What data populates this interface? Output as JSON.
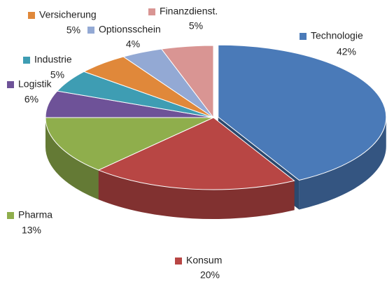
{
  "chart_data": {
    "type": "pie",
    "categories": [
      "Technologie",
      "Konsum",
      "Pharma",
      "Logistik",
      "Industrie",
      "Versicherung",
      "Optionsschein",
      "Finanzdienst."
    ],
    "values": [
      42,
      20,
      13,
      6,
      5,
      5,
      4,
      5
    ],
    "value_labels": [
      "42%",
      "20%",
      "13%",
      "6%",
      "5%",
      "5%",
      "4%",
      "5%"
    ],
    "colors": [
      "#4a7ab8",
      "#b84644",
      "#8fae4c",
      "#6e5298",
      "#3e9db3",
      "#e0883a",
      "#93a9d4",
      "#d99593"
    ]
  }
}
